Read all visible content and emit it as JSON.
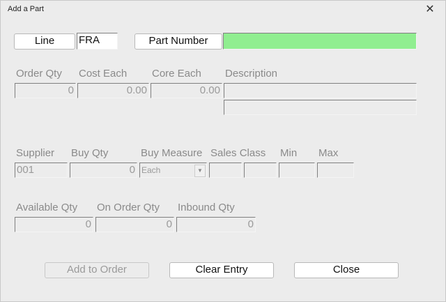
{
  "window": {
    "title": "Add a Part",
    "close_icon": "close-icon"
  },
  "top": {
    "line_button": "Line",
    "line_value": "FRA",
    "part_number_button": "Part Number",
    "part_number_value": "",
    "part_number_bg": "#90ee90"
  },
  "row1": {
    "order_qty": {
      "label": "Order Qty",
      "value": "0"
    },
    "cost_each": {
      "label": "Cost Each",
      "value": "0.00"
    },
    "core_each": {
      "label": "Core Each",
      "value": "0.00"
    },
    "description": {
      "label": "Description",
      "value": "",
      "value2": ""
    }
  },
  "row2": {
    "supplier": {
      "label": "Supplier",
      "value": "001"
    },
    "buy_qty": {
      "label": "Buy Qty",
      "value": "0"
    },
    "buy_measure": {
      "label": "Buy Measure",
      "value": "Each"
    },
    "sales_class": {
      "label": "Sales Class",
      "value": "",
      "value2": ""
    },
    "min": {
      "label": "Min",
      "value": ""
    },
    "max": {
      "label": "Max",
      "value": ""
    }
  },
  "row3": {
    "available_qty": {
      "label": "Available Qty",
      "value": "0"
    },
    "on_order_qty": {
      "label": "On Order Qty",
      "value": "0"
    },
    "inbound_qty": {
      "label": "Inbound Qty",
      "value": "0"
    }
  },
  "buttons": {
    "add_to_order": "Add to Order",
    "clear_entry": "Clear Entry",
    "close": "Close"
  }
}
